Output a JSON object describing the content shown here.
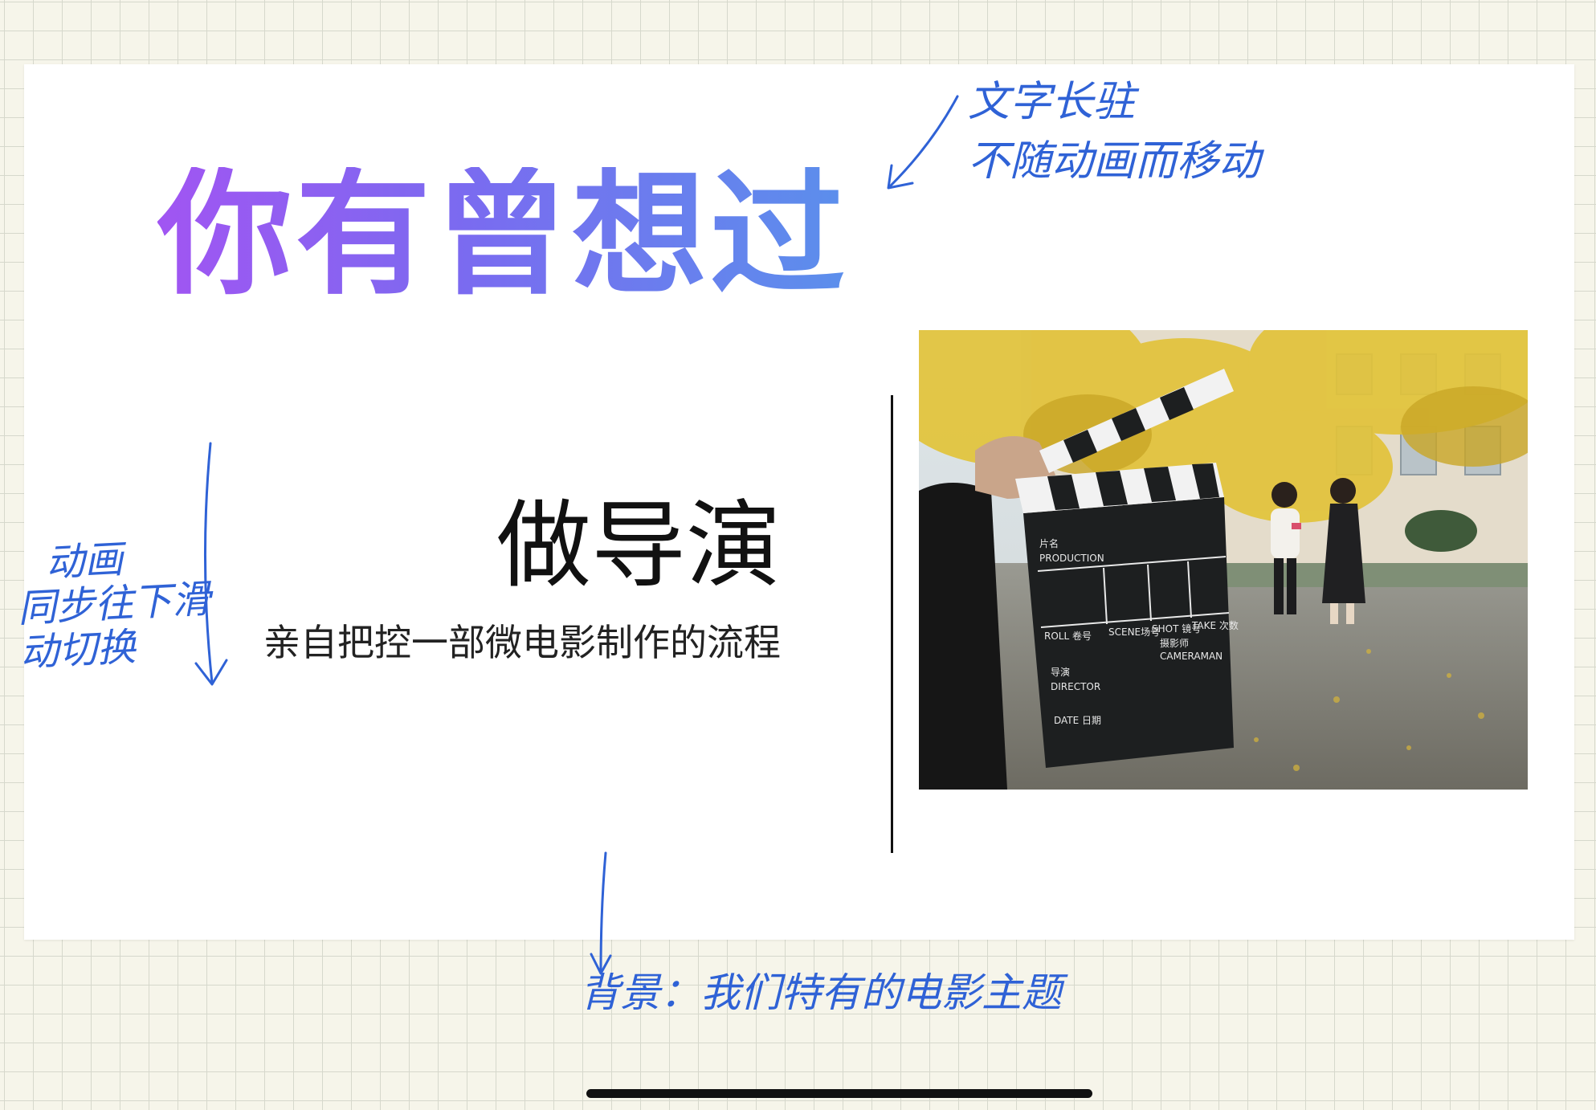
{
  "slide": {
    "headline": "你有曾想过",
    "role_title": "做导演",
    "role_desc": "亲自把控一部微电影制作的流程"
  },
  "photo": {
    "clapper": {
      "film_name": "片名",
      "production": "PRODUCTION",
      "roll": "ROLL 卷号",
      "scene": "SCENE场号",
      "shot": "SHOT 镜号",
      "take": "TAKE 次数",
      "director_cn": "导演",
      "director": "DIRECTOR",
      "date": "DATE 日期",
      "cameraman_cn": "摄影师",
      "cameraman": "CAMERAMAN"
    }
  },
  "annotations": {
    "top_line1": "文字长驻",
    "top_line2": "不随动画而移动",
    "left_line1": "动画",
    "left_line2": "同步往下滑",
    "left_line3": "动切换",
    "bottom": "背景：我们特有的电影主题"
  },
  "colors": {
    "ink": "#2f62d6",
    "gradient_start": "#a155f2",
    "gradient_end": "#5b8fec",
    "grid_bg": "#f6f5ea"
  }
}
